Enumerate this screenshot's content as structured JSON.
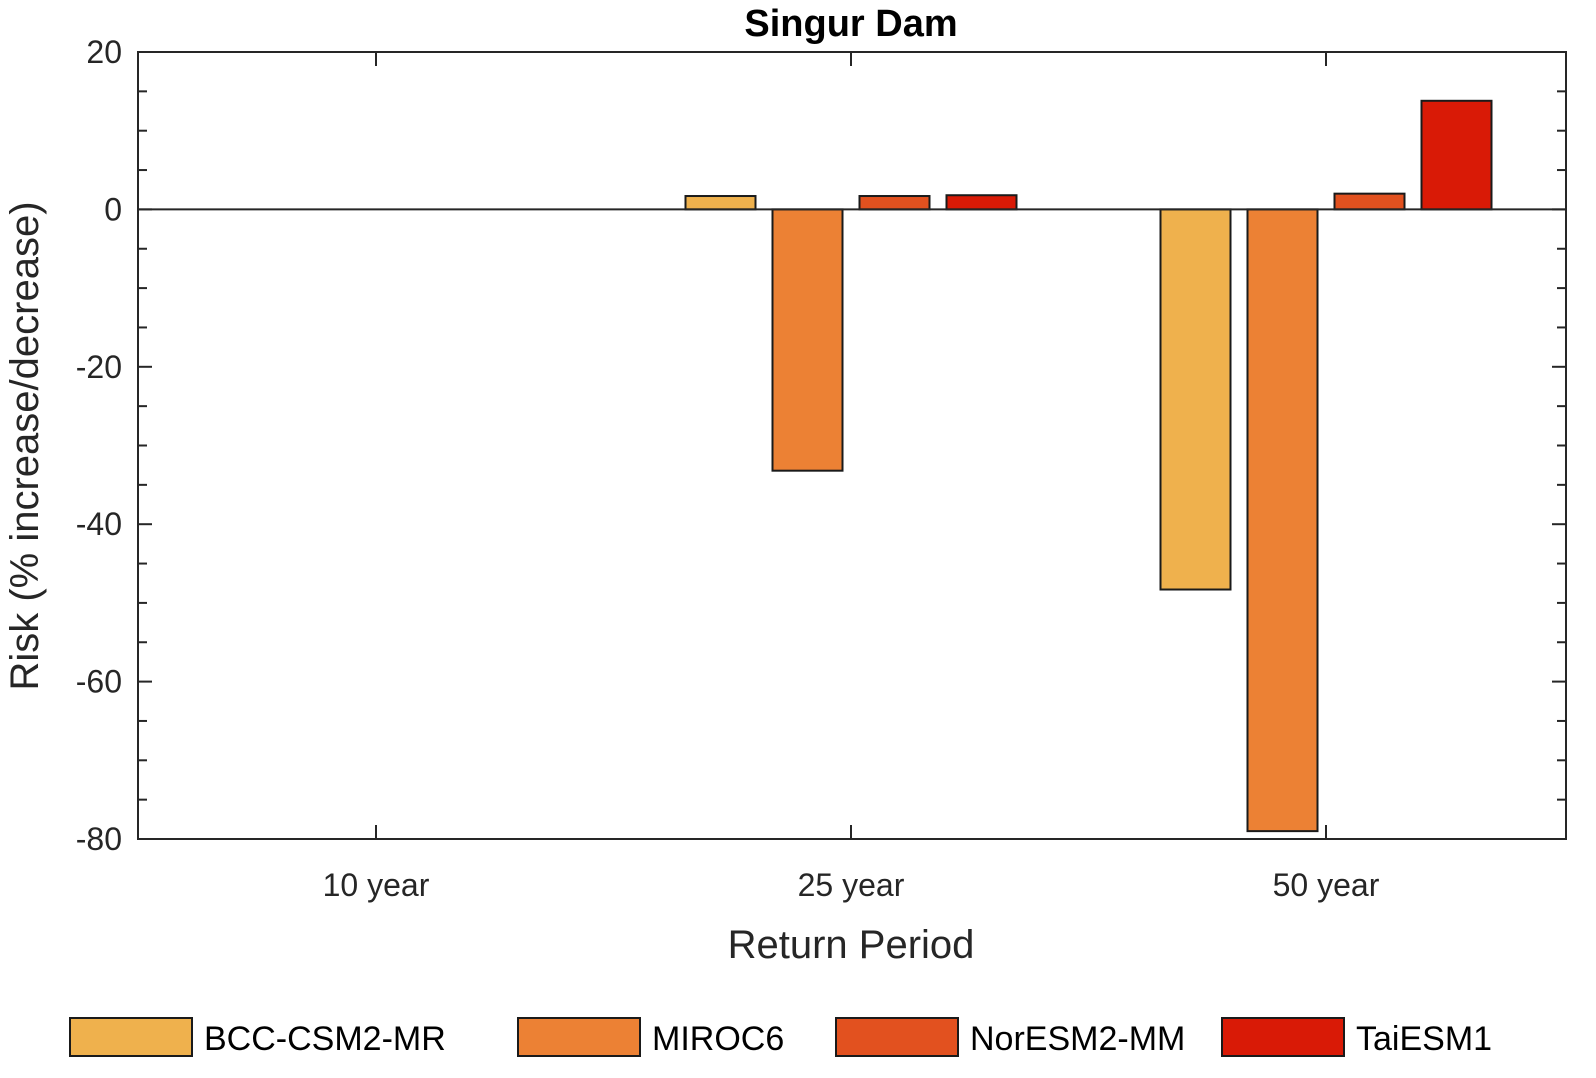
{
  "chart_data": {
    "type": "bar",
    "title": "Singur Dam",
    "xlabel": "Return Period",
    "ylabel": "Risk (% increase/decrease)",
    "categories": [
      "10 year",
      "25 year",
      "50 year"
    ],
    "ylim": [
      -80,
      20
    ],
    "yticks": [
      20,
      0,
      -20,
      -40,
      -60,
      -80
    ],
    "grid": false,
    "legend_position": "bottom",
    "series": [
      {
        "name": "BCC-CSM2-MR",
        "color": "#EFB14D",
        "values": [
          0,
          1.7,
          -48.3
        ]
      },
      {
        "name": "MIROC6",
        "color": "#EC8134",
        "values": [
          0,
          -33.2,
          -79.0
        ]
      },
      {
        "name": "NorESM2-MM",
        "color": "#E2511F",
        "values": [
          0,
          1.7,
          2.0
        ]
      },
      {
        "name": "TaiESM1",
        "color": "#D91A06",
        "values": [
          0,
          1.8,
          13.8
        ]
      }
    ]
  }
}
